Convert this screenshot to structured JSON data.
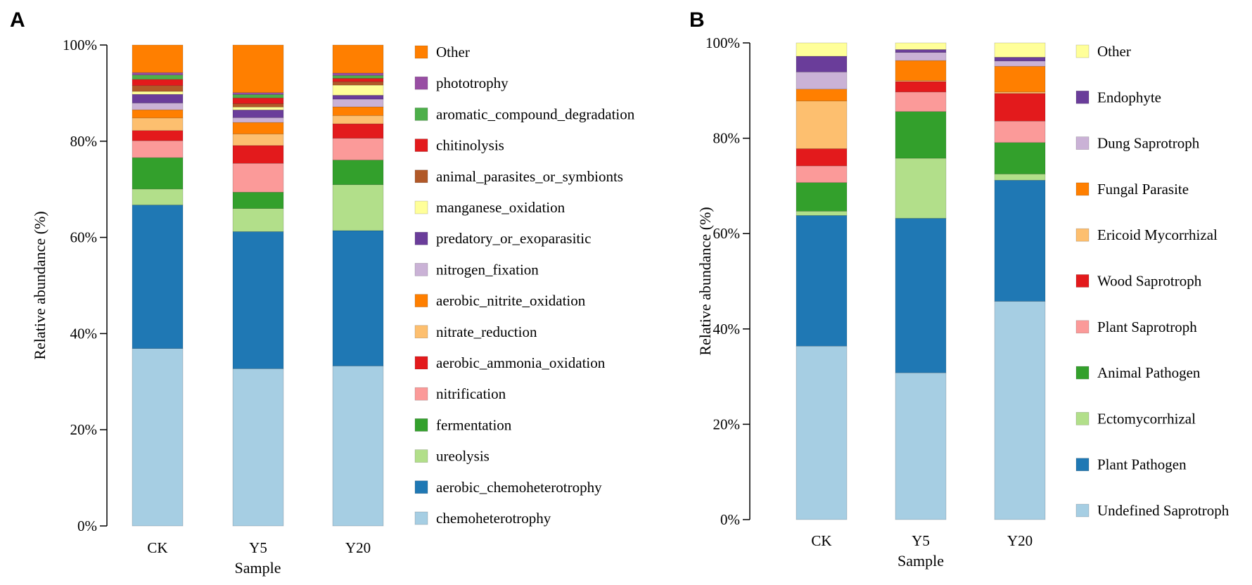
{
  "chart_data": [
    {
      "panel": "A",
      "type": "stacked-bar",
      "title": "",
      "xlabel": "Sample",
      "ylabel": "Relative abundance (%)",
      "ylim": [
        0,
        100
      ],
      "yticks": [
        "0%",
        "20%",
        "40%",
        "60%",
        "80%",
        "100%"
      ],
      "categories": [
        "CK",
        "Y5",
        "Y20"
      ],
      "series": [
        {
          "name": "chemoheterotrophy",
          "color": "#a6cee3",
          "values": [
            36.7,
            32.7,
            33.1
          ]
        },
        {
          "name": "aerobic_chemoheterotrophy",
          "color": "#1f78b4",
          "values": [
            29.7,
            28.5,
            28.0
          ]
        },
        {
          "name": "ureolysis",
          "color": "#b2df8a",
          "values": [
            3.3,
            4.8,
            9.5
          ]
        },
        {
          "name": "fermentation",
          "color": "#33a02c",
          "values": [
            6.5,
            3.4,
            5.1
          ]
        },
        {
          "name": "nitrification",
          "color": "#fb9a99",
          "values": [
            3.5,
            6.0,
            4.5
          ]
        },
        {
          "name": "aerobic_ammonia_oxidation",
          "color": "#e31a1c",
          "values": [
            2.1,
            3.7,
            3.0
          ]
        },
        {
          "name": "nitrate_reduction",
          "color": "#fdbf6f",
          "values": [
            2.6,
            2.4,
            1.7
          ]
        },
        {
          "name": "aerobic_nitrite_oxidation",
          "color": "#ff7f00",
          "values": [
            1.7,
            2.4,
            1.8
          ]
        },
        {
          "name": "nitrogen_fixation",
          "color": "#cab2d6",
          "values": [
            1.4,
            1.0,
            1.6
          ]
        },
        {
          "name": "predatory_or_exoparasitic",
          "color": "#6a3d9a",
          "values": [
            1.8,
            1.6,
            0.8
          ]
        },
        {
          "name": "manganese_oxidation",
          "color": "#ffff99",
          "values": [
            0.6,
            0.6,
            2.1
          ]
        },
        {
          "name": "animal_parasites_or_symbionts",
          "color": "#b15928",
          "values": [
            1.2,
            0.7,
            0.7
          ]
        },
        {
          "name": "chitinolysis",
          "color": "#e31a1c",
          "values": [
            1.3,
            1.2,
            0.7
          ]
        },
        {
          "name": "aromatic_compound_degradation",
          "color": "#4daf4a",
          "values": [
            0.9,
            0.7,
            0.6
          ]
        },
        {
          "name": "phototrophy",
          "color": "#984ea3",
          "values": [
            0.5,
            0.4,
            0.5
          ]
        },
        {
          "name": "Other",
          "color": "#ff7f00",
          "values": [
            5.7,
            9.9,
            5.8
          ]
        }
      ]
    },
    {
      "panel": "B",
      "type": "stacked-bar",
      "title": "",
      "xlabel": "Sample",
      "ylabel": "Relative abundance (%)",
      "ylim": [
        0,
        100
      ],
      "yticks": [
        "0%",
        "20%",
        "40%",
        "60%",
        "80%",
        "100%"
      ],
      "categories": [
        "CK",
        "Y5",
        "Y20"
      ],
      "series": [
        {
          "name": "Undefined Saprotroph",
          "color": "#a6cee3",
          "values": [
            36.4,
            30.8,
            45.8
          ]
        },
        {
          "name": "Plant Pathogen",
          "color": "#1f78b4",
          "values": [
            27.4,
            32.4,
            25.4
          ]
        },
        {
          "name": "Ectomycorrhizal",
          "color": "#b2df8a",
          "values": [
            0.9,
            12.6,
            1.3
          ]
        },
        {
          "name": "Animal Pathogen",
          "color": "#33a02c",
          "values": [
            6.0,
            9.8,
            6.6
          ]
        },
        {
          "name": "Plant Saprotroph",
          "color": "#fb9a99",
          "values": [
            3.5,
            4.1,
            4.5
          ]
        },
        {
          "name": "Wood Saprotroph",
          "color": "#e31a1c",
          "values": [
            3.6,
            2.2,
            5.8
          ]
        },
        {
          "name": "Ericoid Mycorrhizal",
          "color": "#fdbf6f",
          "values": [
            10.0,
            0.2,
            0.3
          ]
        },
        {
          "name": "Fungal Parasite",
          "color": "#ff7f00",
          "values": [
            2.5,
            4.2,
            5.4
          ]
        },
        {
          "name": "Dung Saprotroph",
          "color": "#cab2d6",
          "values": [
            3.6,
            1.7,
            1.1
          ]
        },
        {
          "name": "Endophyte",
          "color": "#6a3d9a",
          "values": [
            3.3,
            0.6,
            0.8
          ]
        },
        {
          "name": "Other",
          "color": "#ffff99",
          "values": [
            2.8,
            1.4,
            3.0
          ]
        }
      ]
    }
  ]
}
